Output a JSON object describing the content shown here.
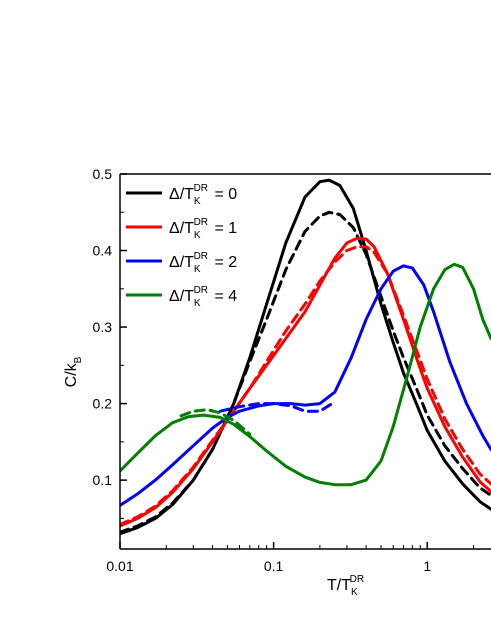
{
  "chart_data": {
    "type": "line",
    "x_scale": "log",
    "xlim": [
      0.01,
      2.6
    ],
    "ylim": [
      0.01,
      0.5
    ],
    "xlabel": {
      "main": "T/T",
      "sub": "K",
      "sup": "DR"
    },
    "ylabel": {
      "main": "C/k",
      "sub": "B"
    },
    "x_ticks": [
      {
        "value": 0.01,
        "label": "0.01"
      },
      {
        "value": 0.1,
        "label": "0.1"
      },
      {
        "value": 1,
        "label": "1"
      }
    ],
    "y_ticks": [
      {
        "value": 0.1,
        "label": "0.1"
      },
      {
        "value": 0.2,
        "label": "0.2"
      },
      {
        "value": 0.3,
        "label": "0.3"
      },
      {
        "value": 0.4,
        "label": "0.4"
      },
      {
        "value": 0.5,
        "label": "0.5"
      }
    ],
    "legend_position": "top-left",
    "series": [
      {
        "name": {
          "prefix": "Δ/T",
          "sub": "K",
          "sup": "DR",
          "suffix": " = 0"
        },
        "color": "#000000",
        "solid": {
          "x": [
            0.01,
            0.013,
            0.017,
            0.022,
            0.03,
            0.04,
            0.055,
            0.07,
            0.09,
            0.12,
            0.16,
            0.2,
            0.23,
            0.27,
            0.33,
            0.4,
            0.5,
            0.6,
            0.7,
            0.85,
            1.0,
            1.3,
            1.7,
            2.2,
            2.6
          ],
          "y": [
            0.03,
            0.038,
            0.05,
            0.068,
            0.1,
            0.14,
            0.2,
            0.26,
            0.33,
            0.41,
            0.47,
            0.49,
            0.492,
            0.485,
            0.455,
            0.4,
            0.33,
            0.28,
            0.24,
            0.2,
            0.165,
            0.125,
            0.095,
            0.072,
            0.062
          ]
        },
        "dashed": {
          "x": [
            0.01,
            0.013,
            0.017,
            0.022,
            0.03,
            0.04,
            0.055,
            0.07,
            0.09,
            0.12,
            0.16,
            0.2,
            0.23,
            0.27,
            0.33,
            0.4,
            0.5,
            0.6,
            0.7,
            0.85,
            1.0,
            1.3,
            1.7,
            2.2,
            2.6
          ],
          "y": [
            0.032,
            0.04,
            0.052,
            0.07,
            0.1,
            0.14,
            0.2,
            0.255,
            0.31,
            0.375,
            0.425,
            0.445,
            0.45,
            0.447,
            0.43,
            0.395,
            0.34,
            0.295,
            0.26,
            0.22,
            0.185,
            0.145,
            0.115,
            0.09,
            0.08
          ]
        }
      },
      {
        "name": {
          "prefix": "Δ/T",
          "sub": "K",
          "sup": "DR",
          "suffix": " = 1"
        },
        "color": "#ff0000",
        "solid": {
          "x": [
            0.01,
            0.013,
            0.017,
            0.022,
            0.03,
            0.04,
            0.055,
            0.07,
            0.09,
            0.12,
            0.16,
            0.2,
            0.25,
            0.3,
            0.35,
            0.4,
            0.45,
            0.55,
            0.7,
            0.85,
            1.0,
            1.3,
            1.7,
            2.2,
            2.6
          ],
          "y": [
            0.04,
            0.05,
            0.064,
            0.084,
            0.115,
            0.15,
            0.19,
            0.22,
            0.25,
            0.285,
            0.32,
            0.355,
            0.39,
            0.41,
            0.416,
            0.415,
            0.405,
            0.37,
            0.31,
            0.26,
            0.22,
            0.17,
            0.13,
            0.098,
            0.085
          ]
        },
        "dashed": {
          "x": [
            0.01,
            0.013,
            0.017,
            0.022,
            0.03,
            0.04,
            0.055,
            0.07,
            0.09,
            0.12,
            0.16,
            0.2,
            0.25,
            0.3,
            0.35,
            0.4,
            0.45,
            0.55,
            0.7,
            0.85,
            1.0,
            1.3,
            1.7,
            2.2,
            2.6
          ],
          "y": [
            0.042,
            0.052,
            0.066,
            0.086,
            0.117,
            0.152,
            0.19,
            0.22,
            0.255,
            0.295,
            0.33,
            0.36,
            0.385,
            0.4,
            0.405,
            0.405,
            0.398,
            0.37,
            0.315,
            0.27,
            0.232,
            0.18,
            0.14,
            0.108,
            0.095
          ]
        }
      },
      {
        "name": {
          "prefix": "Δ/T",
          "sub": "K",
          "sup": "DR",
          "suffix": " = 2"
        },
        "color": "#0000ff",
        "solid": {
          "x": [
            0.01,
            0.013,
            0.017,
            0.022,
            0.03,
            0.04,
            0.05,
            0.06,
            0.08,
            0.1,
            0.13,
            0.16,
            0.2,
            0.25,
            0.32,
            0.4,
            0.5,
            0.6,
            0.7,
            0.8,
            0.95,
            1.1,
            1.4,
            1.8,
            2.3,
            2.6
          ],
          "y": [
            0.067,
            0.082,
            0.1,
            0.12,
            0.145,
            0.168,
            0.182,
            0.19,
            0.197,
            0.2,
            0.2,
            0.198,
            0.2,
            0.215,
            0.26,
            0.31,
            0.35,
            0.373,
            0.38,
            0.377,
            0.355,
            0.32,
            0.255,
            0.2,
            0.158,
            0.14
          ]
        },
        "dashed": {
          "x": [
            0.045,
            0.06,
            0.08,
            0.1,
            0.13,
            0.16,
            0.2,
            0.24
          ],
          "y": [
            0.19,
            0.196,
            0.2,
            0.2,
            0.197,
            0.19,
            0.19,
            0.2
          ]
        }
      },
      {
        "name": {
          "prefix": "Δ/T",
          "sub": "K",
          "sup": "DR",
          "suffix": " = 4"
        },
        "color": "#008000",
        "solid": {
          "x": [
            0.01,
            0.013,
            0.017,
            0.022,
            0.028,
            0.035,
            0.045,
            0.055,
            0.07,
            0.09,
            0.12,
            0.16,
            0.2,
            0.25,
            0.32,
            0.4,
            0.5,
            0.6,
            0.75,
            0.9,
            1.1,
            1.3,
            1.5,
            1.7,
            2.0,
            2.3,
            2.6
          ],
          "y": [
            0.112,
            0.135,
            0.158,
            0.175,
            0.183,
            0.185,
            0.182,
            0.173,
            0.157,
            0.138,
            0.118,
            0.104,
            0.097,
            0.094,
            0.094,
            0.1,
            0.125,
            0.17,
            0.24,
            0.3,
            0.35,
            0.375,
            0.382,
            0.378,
            0.35,
            0.31,
            0.285
          ]
        },
        "dashed": {
          "x": [
            0.025,
            0.03,
            0.037,
            0.045,
            0.055,
            0.07
          ],
          "y": [
            0.184,
            0.19,
            0.192,
            0.188,
            0.178,
            0.16
          ]
        }
      }
    ]
  }
}
